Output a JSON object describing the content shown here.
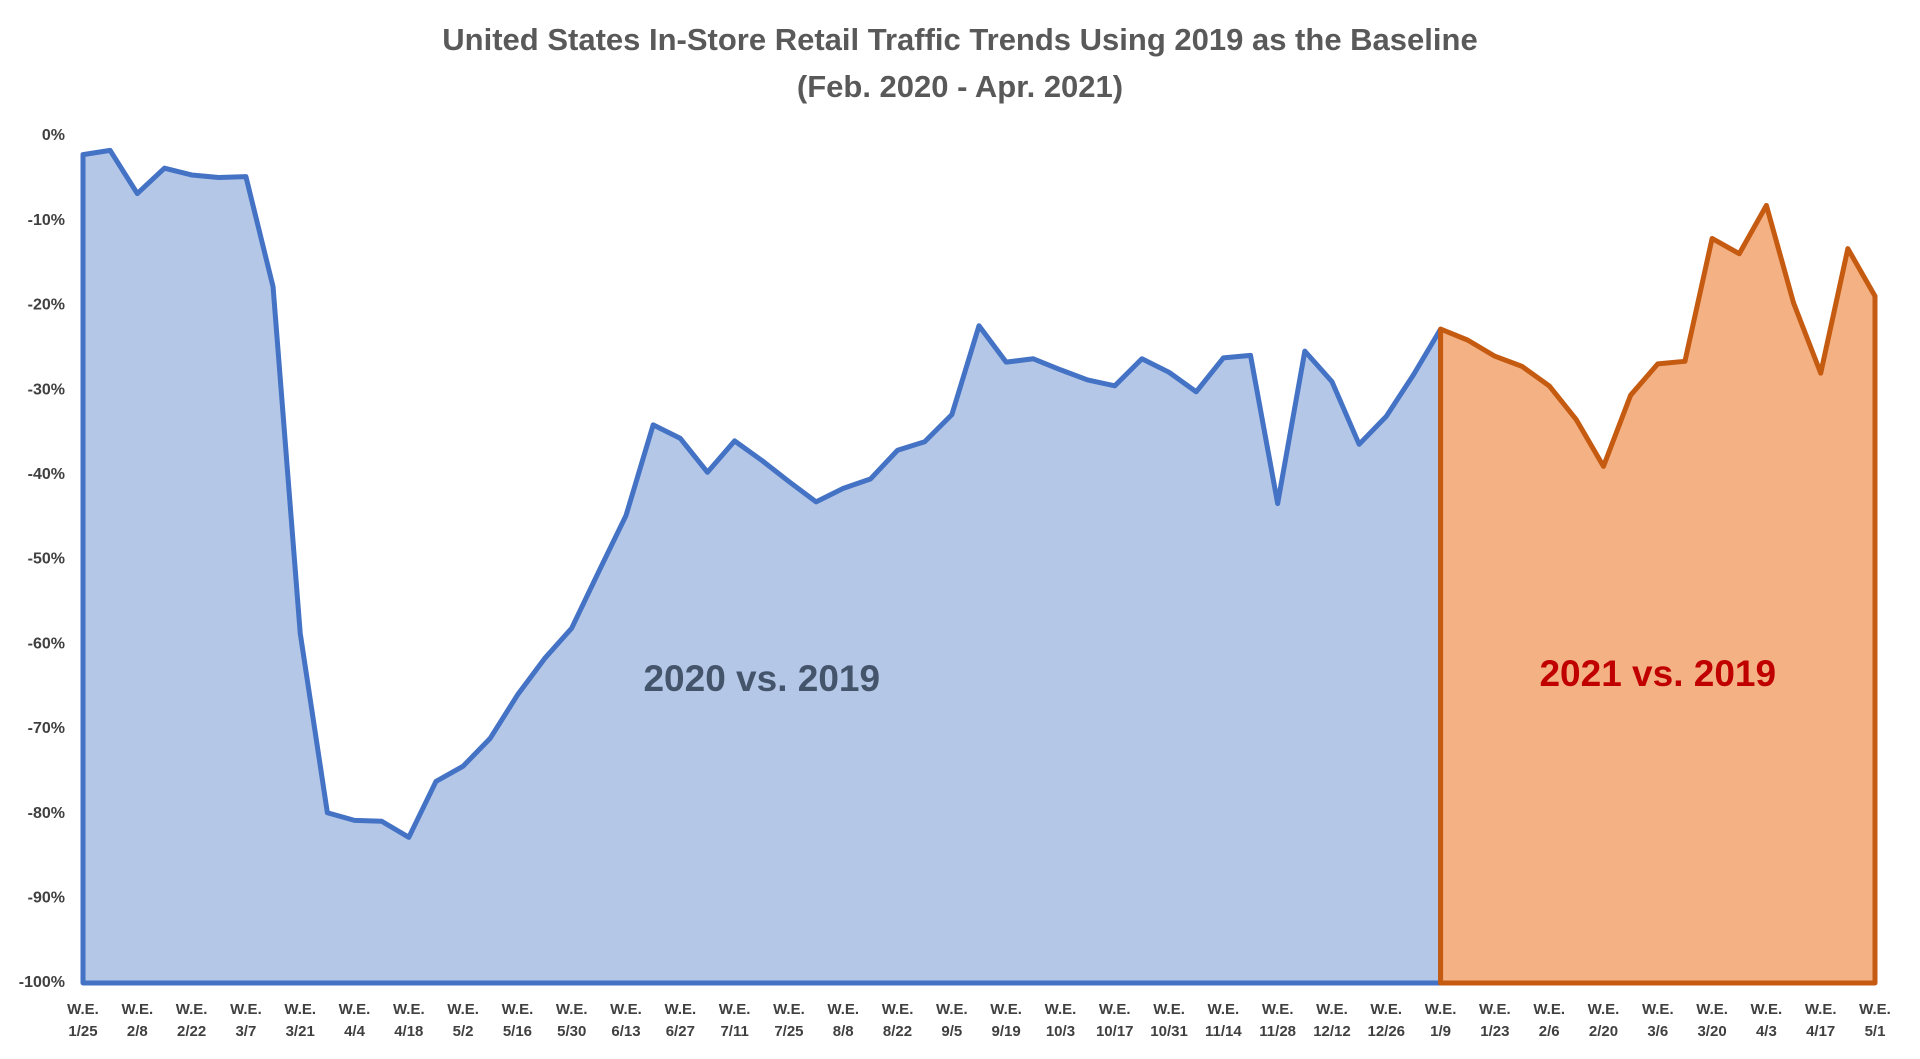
{
  "chart_data": {
    "type": "area",
    "title": "United States In-Store Retail Traffic Trends Using 2019 as the Baseline",
    "subtitle": "(Feb. 2020 - Apr. 2021)",
    "categories": [
      "W.E. 1/25",
      null,
      "W.E. 2/8",
      null,
      "W.E. 2/22",
      null,
      "W.E. 3/7",
      null,
      "W.E. 3/21",
      null,
      "W.E. 4/4",
      null,
      "W.E. 4/18",
      null,
      "W.E. 5/2",
      null,
      "W.E. 5/16",
      null,
      "W.E. 5/30",
      null,
      "W.E. 6/13",
      null,
      "W.E. 6/27",
      null,
      "W.E. 7/11",
      null,
      "W.E. 7/25",
      null,
      "W.E. 8/8",
      null,
      "W.E. 8/22",
      null,
      "W.E. 9/5",
      null,
      "W.E. 9/19",
      null,
      "W.E. 10/3",
      null,
      "W.E. 10/17",
      null,
      "W.E. 10/31",
      null,
      "W.E. 11/14",
      null,
      "W.E. 11/28",
      null,
      "W.E. 12/12",
      null,
      "W.E. 12/26",
      null,
      "W.E. 1/9",
      null,
      "W.E. 1/23",
      null,
      "W.E. 2/6",
      null,
      "W.E. 2/20",
      null,
      "W.E. 3/6",
      null,
      "W.E. 3/20",
      null,
      "W.E. 4/3",
      null,
      "W.E. 4/17",
      null,
      "W.E. 5/1"
    ],
    "series": [
      {
        "name": "2020 vs. 2019",
        "color": "#4472c4",
        "fill": "#b4c7e7",
        "label_color": "#44546a",
        "values": [
          -2.2,
          -1.7,
          -6.8,
          -3.8,
          -4.6,
          -4.9,
          -4.8,
          -17.8,
          -58.7,
          -79.9,
          -80.8,
          -80.9,
          -82.8,
          -76.2,
          -74.4,
          -71.1,
          -66.0,
          -61.7,
          -58.1,
          -51.4,
          -44.8,
          -34.1,
          -35.7,
          -39.7,
          -36.0,
          -38.3,
          -40.8,
          -43.2,
          -41.6,
          -40.5,
          -37.1,
          -36.1,
          -32.9,
          -22.4,
          -26.7,
          -26.3,
          -27.6,
          -28.8,
          -29.5,
          -26.3,
          -27.9,
          -30.2,
          -26.2,
          -25.9,
          -43.4,
          -25.4,
          -29.0,
          -36.4,
          -33.1,
          -28.2,
          -22.8,
          null,
          null,
          null,
          null,
          null,
          null,
          null,
          null,
          null,
          null,
          null,
          null,
          null,
          null,
          null,
          null
        ]
      },
      {
        "name": "2021 vs. 2019",
        "color": "#c55a11",
        "fill": "#f4b183",
        "label_color": "#c00000",
        "values": [
          null,
          null,
          null,
          null,
          null,
          null,
          null,
          null,
          null,
          null,
          null,
          null,
          null,
          null,
          null,
          null,
          null,
          null,
          null,
          null,
          null,
          null,
          null,
          null,
          null,
          null,
          null,
          null,
          null,
          null,
          null,
          null,
          null,
          null,
          null,
          null,
          null,
          null,
          null,
          null,
          null,
          null,
          null,
          null,
          null,
          null,
          null,
          null,
          null,
          null,
          -22.8,
          -24.1,
          -26.0,
          -27.2,
          -29.5,
          -33.5,
          -39.0,
          -30.6,
          -26.9,
          -26.6,
          -12.1,
          -13.9,
          -8.2,
          -19.7,
          -28.0,
          -13.3,
          -18.9
        ]
      }
    ],
    "ylim": [
      -100,
      0
    ],
    "yticks": [
      {
        "value": 0,
        "label": "0%"
      },
      {
        "value": -10,
        "label": "-10%"
      },
      {
        "value": -20,
        "label": "-20%"
      },
      {
        "value": -30,
        "label": "-30%"
      },
      {
        "value": -40,
        "label": "-40%"
      },
      {
        "value": -50,
        "label": "-50%"
      },
      {
        "value": -60,
        "label": "-60%"
      },
      {
        "value": -70,
        "label": "-70%"
      },
      {
        "value": -80,
        "label": "-80%"
      },
      {
        "value": -90,
        "label": "-90%"
      },
      {
        "value": -100,
        "label": "-100%"
      }
    ],
    "grid": false
  }
}
